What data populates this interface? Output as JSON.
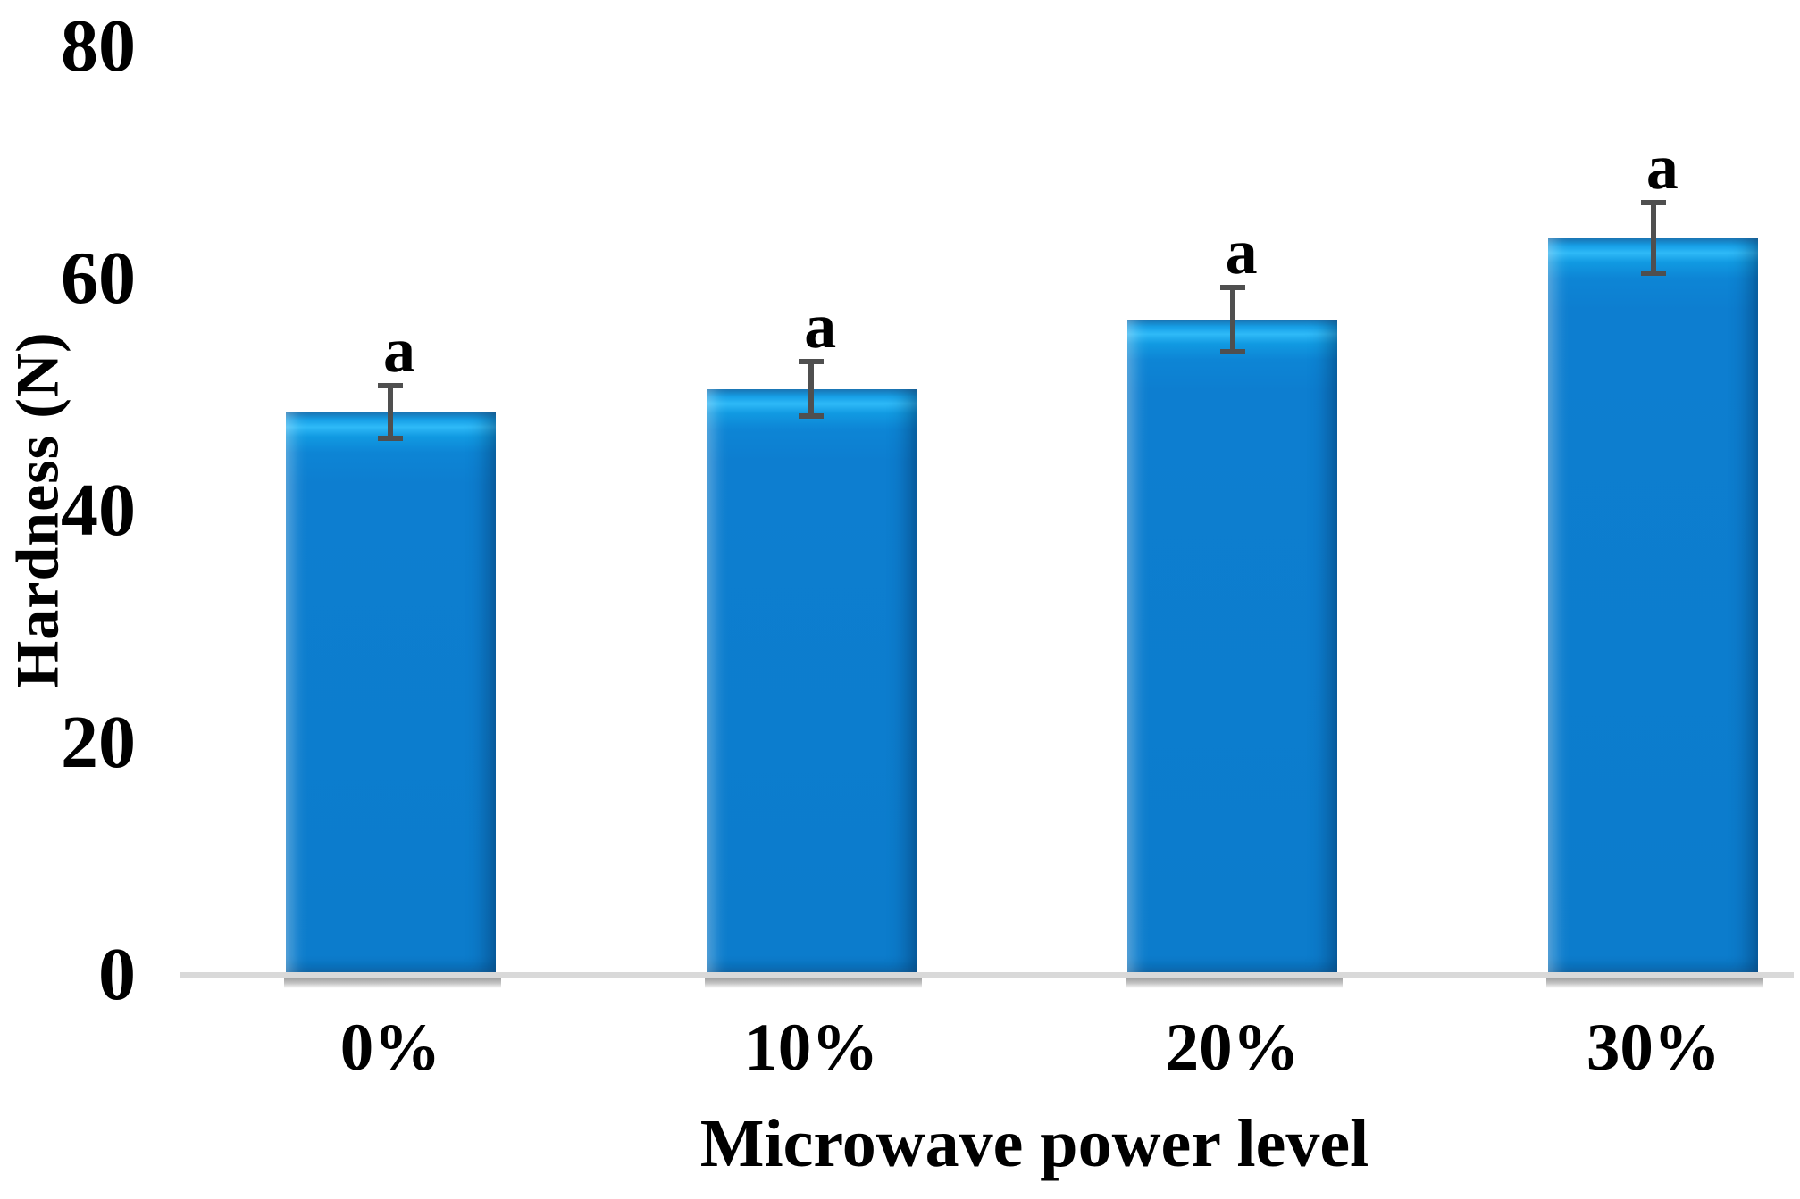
{
  "chart_data": {
    "type": "bar",
    "title": "",
    "xlabel": "Microwave power level",
    "ylabel": "Hardness (N)",
    "categories": [
      "0%",
      "10%",
      "20%",
      "30%"
    ],
    "series": [
      {
        "name": "Hardness",
        "values": [
          48.5,
          50.5,
          56.5,
          63.5
        ],
        "errors": [
          2.5,
          2.6,
          3.0,
          3.3
        ]
      }
    ],
    "significance_labels": [
      "a",
      "a",
      "a",
      "a"
    ],
    "y_ticks": [
      0,
      20,
      40,
      60,
      80
    ],
    "ylim": [
      0,
      80
    ],
    "grid": false,
    "legend_position": "none",
    "bar_color": "#0d7ed0",
    "bar_highlight_color": "#2fbaf8",
    "error_bar_color": "#4f4f4f",
    "axis_line_color": "#d9d9d9",
    "text_color": "#000000"
  }
}
